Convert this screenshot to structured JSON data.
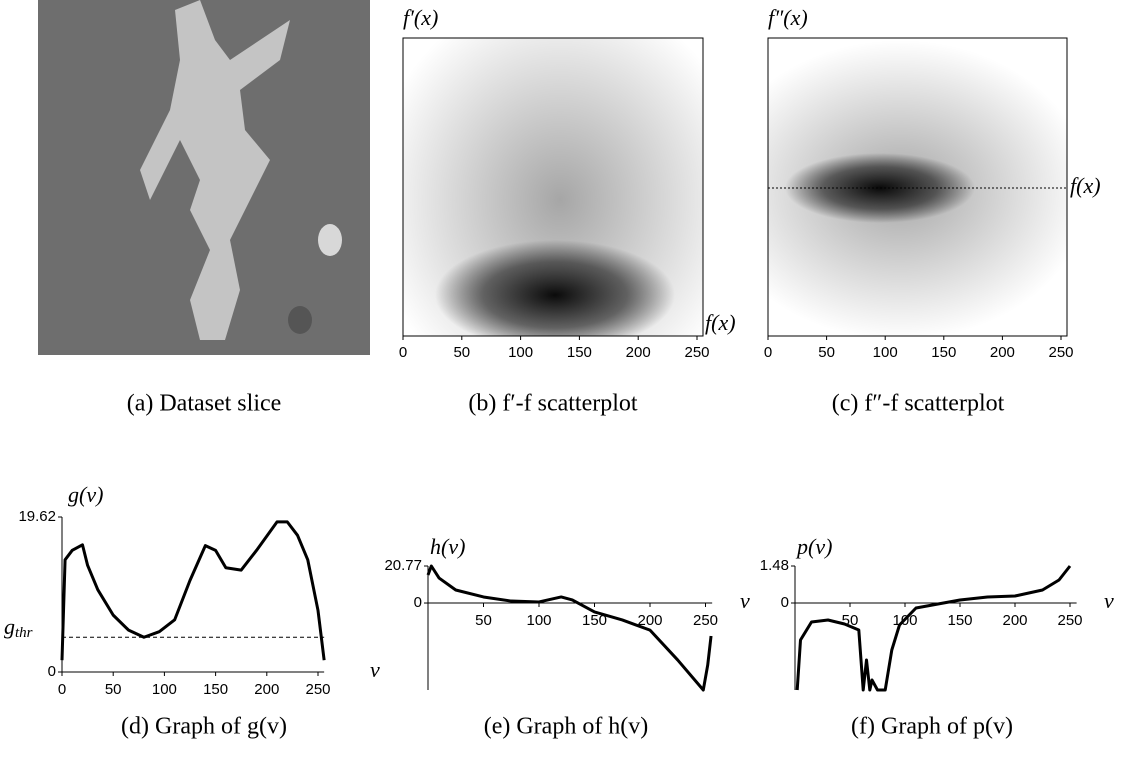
{
  "image_panel": {
    "caption": "(a) Dataset slice"
  },
  "chart_data": [
    {
      "type": "density",
      "ylabel": "f′(x)",
      "xlabel": "f(x)",
      "caption": "(b) f′-f scatterplot",
      "xlim": [
        0,
        256
      ],
      "xticks": [
        0,
        50,
        100,
        150,
        200,
        250
      ]
    },
    {
      "type": "density",
      "ylabel": "f″(x)",
      "xlabel": "f(x)",
      "caption": "(c) f″-f scatterplot",
      "xlim": [
        0,
        256
      ],
      "xticks": [
        0,
        50,
        100,
        150,
        200,
        250
      ]
    },
    {
      "type": "line",
      "ylabel": "g(v)",
      "xlabel": "v",
      "caption": "(d) Graph of g(v)",
      "x": [
        0,
        3,
        10,
        20,
        25,
        35,
        50,
        65,
        80,
        95,
        110,
        125,
        140,
        150,
        160,
        175,
        190,
        210,
        220,
        230,
        240,
        250,
        256
      ],
      "values": [
        1.5,
        14.2,
        15.4,
        16.1,
        13.5,
        10.4,
        7.2,
        5.3,
        4.4,
        5.1,
        6.6,
        11.6,
        16.0,
        15.4,
        13.2,
        12.9,
        15.4,
        19.0,
        19.0,
        17.3,
        14.2,
        7.8,
        1.5
      ],
      "xlim": [
        0,
        256
      ],
      "ylim": [
        0,
        19.62
      ],
      "xticks": [
        0,
        50,
        100,
        150,
        200,
        250
      ],
      "yticks": [
        0,
        19.62
      ],
      "threshold": {
        "label": "g",
        "sub": "thr",
        "value": 4.4
      }
    },
    {
      "type": "line",
      "ylabel": "h(v)",
      "xlabel": "v",
      "caption": "(e) Graph of h(v)",
      "x": [
        0,
        3,
        10,
        25,
        50,
        75,
        100,
        120,
        130,
        150,
        175,
        200,
        225,
        248,
        252,
        255
      ],
      "values": [
        15.7,
        20.77,
        14,
        7.3,
        3.4,
        1.1,
        0.6,
        3.4,
        1.7,
        -5,
        -9.5,
        -15.2,
        -32,
        -48.8,
        -34.8,
        -18.5
      ],
      "xlim": [
        0,
        256
      ],
      "ylim": [
        -48.8,
        20.77
      ],
      "xticks": [
        50,
        100,
        150,
        200,
        250
      ],
      "yticks": [
        0,
        20.77
      ]
    },
    {
      "type": "line",
      "ylabel": "p(v)",
      "xlabel": "v",
      "caption": "(f) Graph of p(v)",
      "x": [
        2,
        5,
        15,
        30,
        45,
        58,
        62,
        65,
        68,
        70,
        75,
        82,
        88,
        95,
        110,
        130,
        150,
        175,
        200,
        225,
        240,
        250
      ],
      "values": [
        -3.48,
        -1.48,
        -0.76,
        -0.68,
        -0.84,
        -1.08,
        -3.48,
        -2.28,
        -3.48,
        -3.08,
        -3.48,
        -3.48,
        -1.88,
        -0.88,
        -0.2,
        -0.04,
        0.12,
        0.24,
        0.28,
        0.52,
        0.92,
        1.48
      ],
      "xlim": [
        0,
        256
      ],
      "ylim": [
        -3.48,
        1.48
      ],
      "xticks": [
        50,
        100,
        150,
        200,
        250
      ],
      "yticks": [
        0,
        1.48
      ]
    }
  ]
}
